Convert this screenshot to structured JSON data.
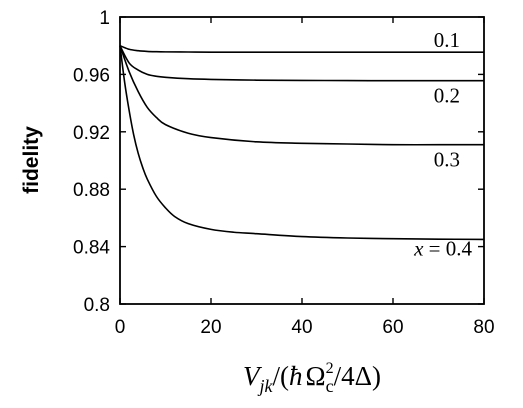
{
  "chart_data": {
    "type": "line",
    "title": "",
    "ylabel": "fidelity",
    "xlabel": "V_jk/(ħΩ_c^2/4Δ)",
    "xlim": [
      0,
      80
    ],
    "ylim": [
      0.8,
      1
    ],
    "xticks": [
      0,
      20,
      40,
      60,
      80
    ],
    "yticks": [
      0.8,
      0.84,
      0.88,
      0.92,
      0.96,
      1
    ],
    "xtick_labels": [
      "0",
      "20",
      "40",
      "60",
      "80"
    ],
    "ytick_labels": [
      "0.8",
      "0.84",
      "0.88",
      "0.92",
      "0.96",
      "1"
    ],
    "grid": false,
    "series": [
      {
        "name": "0.1",
        "x": [
          0,
          2,
          4,
          6,
          8,
          10,
          15,
          20,
          30,
          40,
          50,
          60,
          70,
          80
        ],
        "y": [
          0.98,
          0.9775,
          0.9765,
          0.976,
          0.9758,
          0.9757,
          0.9756,
          0.9755,
          0.9755,
          0.9755,
          0.9755,
          0.9755,
          0.9755,
          0.9755
        ]
      },
      {
        "name": "0.2",
        "x": [
          0,
          2,
          4,
          6,
          8,
          10,
          15,
          20,
          30,
          40,
          50,
          60,
          70,
          80
        ],
        "y": [
          0.98,
          0.968,
          0.963,
          0.96,
          0.9587,
          0.958,
          0.957,
          0.9565,
          0.956,
          0.9558,
          0.9557,
          0.9556,
          0.9556,
          0.9556
        ]
      },
      {
        "name": "0.3",
        "x": [
          0,
          2,
          4,
          6,
          8,
          10,
          15,
          20,
          30,
          40,
          50,
          60,
          70,
          80
        ],
        "y": [
          0.98,
          0.962,
          0.948,
          0.937,
          0.93,
          0.925,
          0.919,
          0.916,
          0.913,
          0.912,
          0.9115,
          0.911,
          0.911,
          0.911
        ]
      },
      {
        "name": "x = 0.4",
        "x": [
          0,
          1,
          2,
          3,
          4,
          5,
          6,
          8,
          10,
          12,
          15,
          20,
          25,
          30,
          40,
          50,
          60,
          70,
          80
        ],
        "y": [
          0.98,
          0.955,
          0.935,
          0.918,
          0.905,
          0.895,
          0.887,
          0.875,
          0.867,
          0.861,
          0.856,
          0.852,
          0.85,
          0.849,
          0.847,
          0.846,
          0.8455,
          0.8452,
          0.845
        ]
      }
    ]
  }
}
